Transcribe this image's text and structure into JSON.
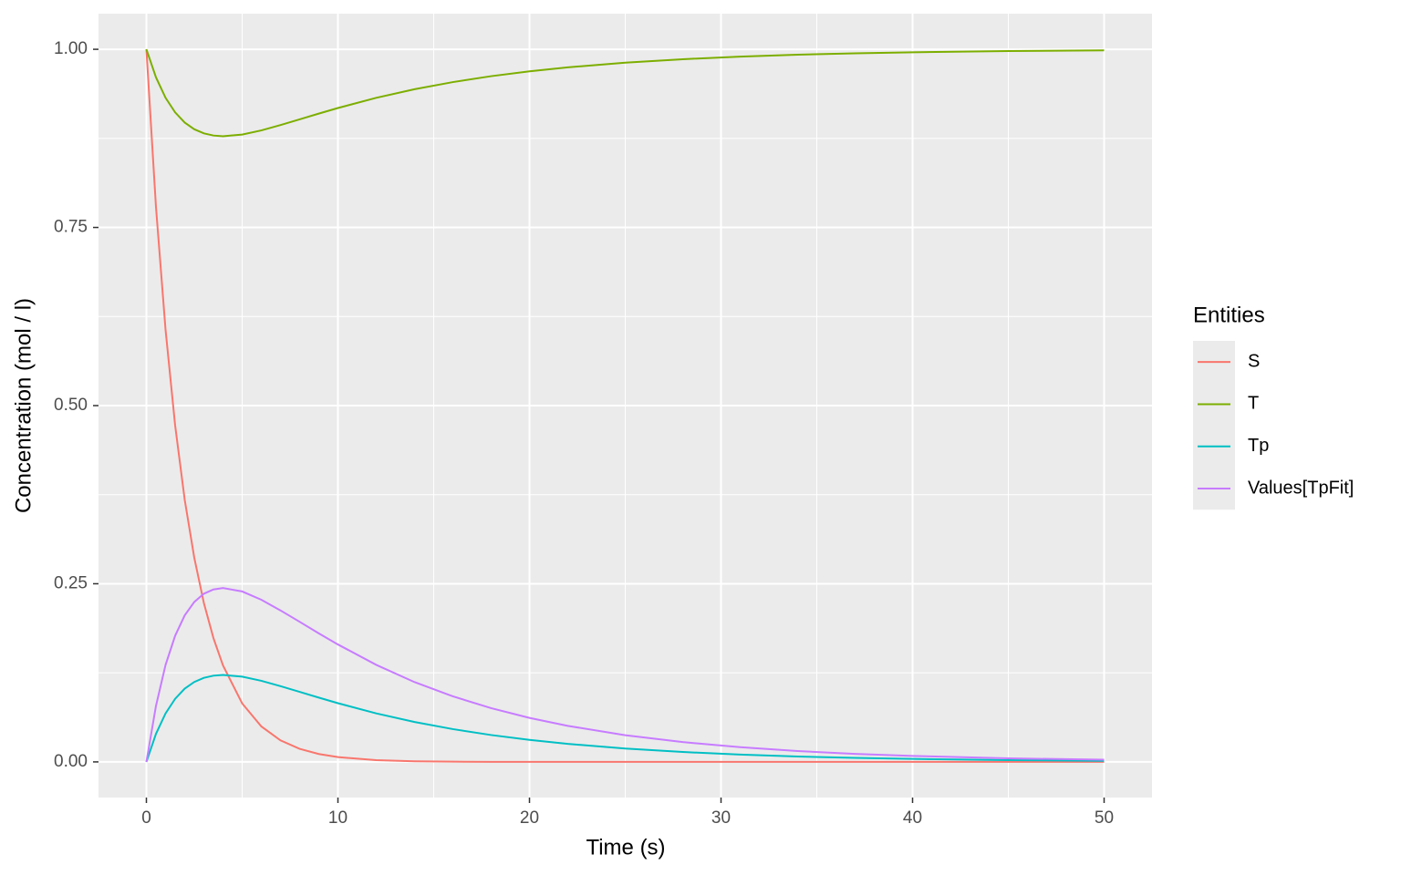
{
  "chart_data": {
    "type": "line",
    "x_label": "Time (s)",
    "y_label": "Concentration (mol / l)",
    "legend_title": "Entities",
    "legend": "right",
    "grid": true,
    "xlim": [
      -2.5,
      52.5
    ],
    "ylim": [
      -0.05,
      1.05
    ],
    "xticks": [
      0,
      10,
      20,
      30,
      40,
      50
    ],
    "yticks": [
      {
        "value": 0,
        "label": "0.00"
      },
      {
        "value": 0.25,
        "label": "0.25"
      },
      {
        "value": 0.5,
        "label": "0.50"
      },
      {
        "value": 0.75,
        "label": "0.75"
      },
      {
        "value": 1,
        "label": "1.00"
      }
    ],
    "x": [
      0,
      0.5,
      1,
      1.5,
      2,
      2.5,
      3,
      3.5,
      4,
      5,
      6,
      7,
      8,
      9,
      10,
      12,
      14,
      16,
      18,
      20,
      22,
      25,
      28,
      31,
      34,
      37,
      40,
      45,
      50
    ],
    "series": [
      {
        "name": "S",
        "color": "#F8766D",
        "values": [
          1,
          0.7788,
          0.6065,
          0.4724,
          0.3679,
          0.2865,
          0.2231,
          0.1738,
          0.1353,
          0.0821,
          0.0498,
          0.0302,
          0.0183,
          0.0111,
          0.0067,
          0.0025,
          0.0009,
          0.0003,
          0.0001,
          0,
          0,
          0,
          0,
          0,
          0,
          0,
          0,
          0,
          0
        ]
      },
      {
        "name": "T",
        "color": "#7CAE00",
        "values": [
          1,
          0.9607,
          0.932,
          0.9115,
          0.8972,
          0.8878,
          0.882,
          0.879,
          0.878,
          0.8804,
          0.8862,
          0.8937,
          0.9017,
          0.9098,
          0.9176,
          0.9319,
          0.944,
          0.954,
          0.9623,
          0.9691,
          0.9747,
          0.9813,
          0.9861,
          0.9897,
          0.9924,
          0.9944,
          0.9958,
          0.9975,
          0.9985
        ]
      },
      {
        "name": "Tp",
        "color": "#00BFC4",
        "values": [
          0,
          0.0393,
          0.068,
          0.0885,
          0.1028,
          0.1122,
          0.118,
          0.121,
          0.122,
          0.1196,
          0.1138,
          0.1063,
          0.0983,
          0.0902,
          0.0824,
          0.0681,
          0.056,
          0.046,
          0.0377,
          0.0309,
          0.0253,
          0.0187,
          0.0139,
          0.0103,
          0.0076,
          0.0056,
          0.0042,
          0.0025,
          0.0015
        ]
      },
      {
        "name": "Values[TpFit]",
        "color": "#C77CFF",
        "values": [
          0,
          0.0786,
          0.136,
          0.177,
          0.2056,
          0.2244,
          0.236,
          0.242,
          0.244,
          0.2392,
          0.2276,
          0.2126,
          0.1966,
          0.1804,
          0.1648,
          0.1362,
          0.112,
          0.092,
          0.0754,
          0.0618,
          0.0506,
          0.0374,
          0.0278,
          0.0206,
          0.0152,
          0.0112,
          0.0084,
          0.005,
          0.003
        ]
      }
    ]
  }
}
